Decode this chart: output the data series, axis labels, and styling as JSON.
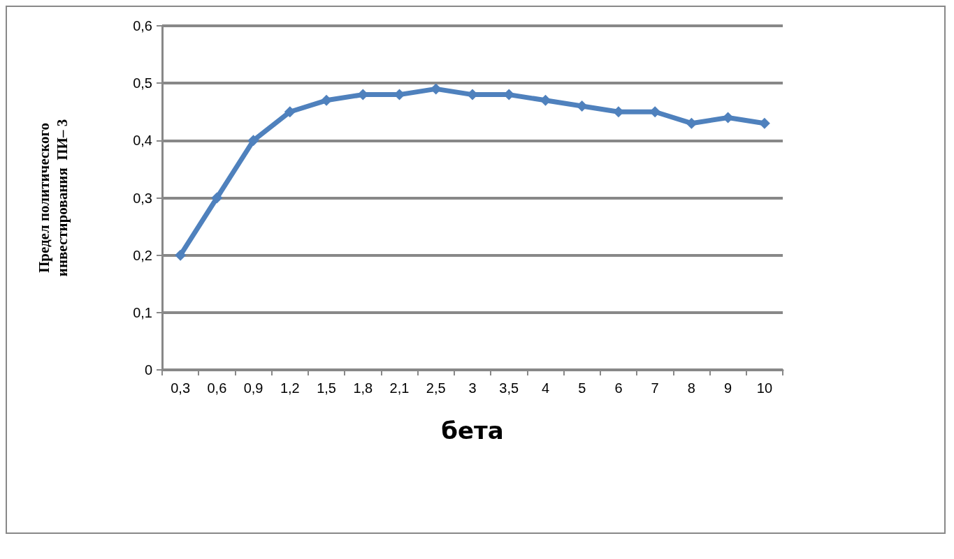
{
  "chart_data": {
    "type": "line",
    "xlabel": "бета",
    "ylabel": "Предел политического инвестирования  ПИ– 3",
    "categories": [
      "0,3",
      "0,6",
      "0,9",
      "1,2",
      "1,5",
      "1,8",
      "2,1",
      "2,5",
      "3",
      "3,5",
      "4",
      "5",
      "6",
      "7",
      "8",
      "9",
      "10"
    ],
    "series": [
      {
        "color": "#4f81bd",
        "values": [
          0.2,
          0.3,
          0.4,
          0.45,
          0.47,
          0.48,
          0.48,
          0.49,
          0.48,
          0.48,
          0.47,
          0.46,
          0.45,
          0.45,
          0.43,
          0.44,
          0.43
        ]
      }
    ],
    "ylim": [
      0,
      0.6
    ],
    "yticks": [
      0,
      {
        "value": 0.1,
        "label": "0,1"
      },
      {
        "value": 0.2,
        "label": "0,2"
      },
      {
        "value": 0.3,
        "label": "0,3"
      },
      {
        "value": 0.4,
        "label": "0,4"
      },
      {
        "value": 0.5,
        "label": "0,5"
      },
      {
        "value": 0.6,
        "label": "0,6"
      }
    ],
    "grid": "y",
    "marker": "diamond",
    "line_style": "solid"
  }
}
